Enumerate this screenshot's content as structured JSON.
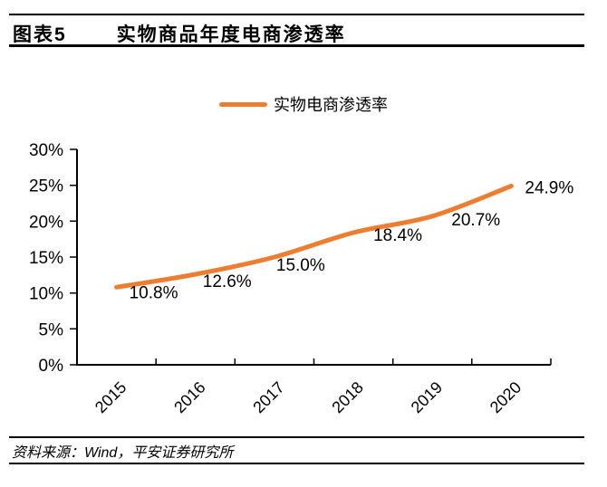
{
  "header": {
    "figure_label": "图表5",
    "title": "实物商品年度电商渗透率"
  },
  "legend": {
    "label": "实物电商渗透率"
  },
  "chart_data": {
    "type": "line",
    "title": "实物商品年度电商渗透率",
    "categories": [
      "2015",
      "2016",
      "2017",
      "2018",
      "2019",
      "2020"
    ],
    "series": [
      {
        "name": "实物电商渗透率",
        "values": [
          10.8,
          12.6,
          15.0,
          18.4,
          20.7,
          24.9
        ]
      }
    ],
    "data_labels": [
      "10.8%",
      "12.6%",
      "15.0%",
      "18.4%",
      "20.7%",
      "24.9%"
    ],
    "xlabel": "",
    "ylabel": "",
    "ylim": [
      0,
      30
    ],
    "y_tick_values": [
      30,
      25,
      20,
      15,
      10,
      5,
      0
    ],
    "y_ticks": [
      "30%",
      "25%",
      "20%",
      "15%",
      "10%",
      "5%",
      "0%"
    ],
    "grid": false,
    "legend_position": "top",
    "line_color": "#ED7D31",
    "axis_color": "#000000"
  },
  "footer": {
    "source": "资料来源：Wind，平安证券研究所"
  }
}
